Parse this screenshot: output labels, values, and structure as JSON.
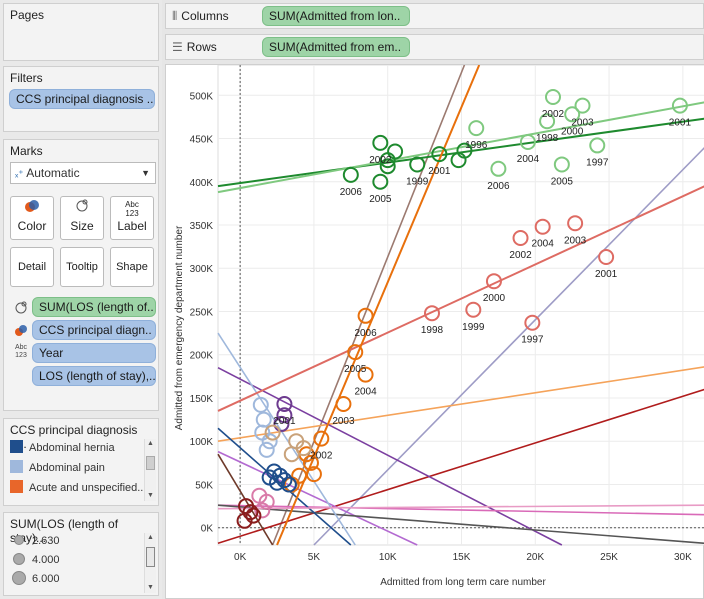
{
  "pages": {
    "title": "Pages"
  },
  "filters": {
    "title": "Filters",
    "pill": "CCS principal diagnosis .."
  },
  "marks": {
    "title": "Marks",
    "mark_type": "Automatic",
    "buttons": {
      "color": "Color",
      "size": "Size",
      "label": "Label",
      "detail": "Detail",
      "tooltip": "Tooltip",
      "shape": "Shape"
    },
    "label_icon_text": "Abc\n123",
    "fields": [
      {
        "label": "SUM(LOS (length of..",
        "kind": "size"
      },
      {
        "label": "CCS principal diagn..",
        "kind": "color"
      },
      {
        "label": "Year",
        "kind": "label"
      },
      {
        "label": "LOS (length of stay),..",
        "kind": "detail"
      }
    ]
  },
  "color_legend": {
    "title": "CCS principal diagnosis n...",
    "items": [
      {
        "label": "Abdominal hernia",
        "color": "#1f4e8c"
      },
      {
        "label": "Abdominal pain",
        "color": "#9fb8dc"
      },
      {
        "label": "Acute and unspecified...",
        "color": "#e8662a"
      }
    ]
  },
  "size_legend": {
    "title": "SUM(LOS (length of stay)...",
    "items": [
      "2.630",
      "4.000",
      "6.000"
    ]
  },
  "shelves": {
    "columns_label": "Columns",
    "columns_pill": "SUM(Admitted from lon..",
    "rows_label": "Rows",
    "rows_pill": "SUM(Admitted from em.."
  },
  "chart_data": {
    "type": "scatter",
    "xlabel": "Admitted from long term care number",
    "ylabel": "Admitted from emergency department number",
    "xticks": [
      "0K",
      "5K",
      "10K",
      "15K",
      "20K",
      "25K",
      "30K"
    ],
    "yticks": [
      "0K",
      "50K",
      "100K",
      "150K",
      "200K",
      "250K",
      "300K",
      "350K",
      "400K",
      "450K",
      "500K"
    ],
    "xlim": [
      -1500,
      31500
    ],
    "ylim": [
      -20000,
      535000
    ],
    "series": [
      {
        "name": "dark-green",
        "color": "#1e8a2e",
        "points": [
          {
            "x": 7500,
            "y": 408000,
            "year": "2006"
          },
          {
            "x": 9500,
            "y": 445000,
            "year": "2002"
          },
          {
            "x": 9500,
            "y": 400000,
            "year": "2005"
          },
          {
            "x": 10000,
            "y": 425000
          },
          {
            "x": 10500,
            "y": 435000
          },
          {
            "x": 10000,
            "y": 418000
          },
          {
            "x": 12000,
            "y": 420000,
            "year": "1999"
          },
          {
            "x": 13500,
            "y": 432000,
            "year": "2001"
          },
          {
            "x": 14800,
            "y": 425000
          },
          {
            "x": 15200,
            "y": 436000
          }
        ],
        "trend": [
          [
            -1500,
            395000
          ],
          [
            31500,
            473000
          ]
        ]
      },
      {
        "name": "light-green",
        "color": "#7fc97f",
        "points": [
          {
            "x": 21200,
            "y": 498000,
            "year": "2002"
          },
          {
            "x": 23200,
            "y": 488000,
            "year": "2003"
          },
          {
            "x": 20800,
            "y": 470000,
            "year": "1998"
          },
          {
            "x": 22500,
            "y": 478000,
            "year": "2000"
          },
          {
            "x": 29800,
            "y": 488000,
            "year": "2001"
          },
          {
            "x": 19500,
            "y": 446000,
            "year": "2004"
          },
          {
            "x": 24200,
            "y": 442000,
            "year": "1997"
          },
          {
            "x": 21800,
            "y": 420000,
            "year": "2005"
          },
          {
            "x": 17500,
            "y": 415000,
            "year": "2006"
          },
          {
            "x": 16000,
            "y": 462000,
            "year": "1996"
          }
        ],
        "trend": [
          [
            -1500,
            388000
          ],
          [
            31500,
            492000
          ]
        ]
      },
      {
        "name": "salmon",
        "color": "#de6b63",
        "points": [
          {
            "x": 13000,
            "y": 248000,
            "year": "1998"
          },
          {
            "x": 15800,
            "y": 252000,
            "year": "1999"
          },
          {
            "x": 17200,
            "y": 285000,
            "year": "2000"
          },
          {
            "x": 19000,
            "y": 335000,
            "year": "2002"
          },
          {
            "x": 20500,
            "y": 348000,
            "year": "2004"
          },
          {
            "x": 22700,
            "y": 352000,
            "year": "2003"
          },
          {
            "x": 24800,
            "y": 313000,
            "year": "2001"
          },
          {
            "x": 19800,
            "y": 237000,
            "year": "1997"
          }
        ],
        "trend": [
          [
            -1500,
            135000
          ],
          [
            31500,
            395000
          ]
        ]
      },
      {
        "name": "orange",
        "color": "#e8700c",
        "points": [
          {
            "x": 8500,
            "y": 245000,
            "year": "2006"
          },
          {
            "x": 7800,
            "y": 203000,
            "year": "2005"
          },
          {
            "x": 8500,
            "y": 177000,
            "year": "2004"
          },
          {
            "x": 7000,
            "y": 143000,
            "year": "2003"
          },
          {
            "x": 5500,
            "y": 103000,
            "year": "2002"
          },
          {
            "x": 4500,
            "y": 85000
          },
          {
            "x": 4800,
            "y": 75000
          },
          {
            "x": 4000,
            "y": 60000
          },
          {
            "x": 3500,
            "y": 50000
          },
          {
            "x": 5000,
            "y": 62000
          }
        ],
        "trend": [
          [
            2500,
            -20000
          ],
          [
            16200,
            535000
          ]
        ]
      },
      {
        "name": "purple",
        "color": "#6d3b8f",
        "points": [
          {
            "x": 3000,
            "y": 143000,
            "year": "2001"
          },
          {
            "x": 3000,
            "y": 130000
          },
          {
            "x": 2800,
            "y": 120000
          }
        ]
      },
      {
        "name": "blue",
        "color": "#1f4e8c",
        "points": [
          {
            "x": 2300,
            "y": 65000
          },
          {
            "x": 2700,
            "y": 60000
          },
          {
            "x": 3000,
            "y": 55000
          },
          {
            "x": 3300,
            "y": 50000
          },
          {
            "x": 2500,
            "y": 52000
          },
          {
            "x": 2000,
            "y": 58000
          }
        ]
      },
      {
        "name": "light-blue",
        "color": "#9fb8dc",
        "points": [
          {
            "x": 1400,
            "y": 142000
          },
          {
            "x": 1600,
            "y": 125000
          },
          {
            "x": 1500,
            "y": 110000
          },
          {
            "x": 2000,
            "y": 100000
          },
          {
            "x": 1800,
            "y": 90000
          }
        ]
      },
      {
        "name": "tan",
        "color": "#c9a27a",
        "points": [
          {
            "x": 3800,
            "y": 100000
          },
          {
            "x": 4300,
            "y": 92000
          },
          {
            "x": 3500,
            "y": 85000
          },
          {
            "x": 2200,
            "y": 110000
          }
        ]
      },
      {
        "name": "pink",
        "color": "#d97aa8",
        "points": [
          {
            "x": 1300,
            "y": 37000
          },
          {
            "x": 1800,
            "y": 30000
          },
          {
            "x": 1500,
            "y": 20000
          }
        ]
      },
      {
        "name": "dark-red",
        "color": "#8a1c1c",
        "points": [
          {
            "x": 400,
            "y": 25000
          },
          {
            "x": 700,
            "y": 18000
          },
          {
            "x": 300,
            "y": 8000
          },
          {
            "x": 900,
            "y": 14000
          }
        ]
      }
    ],
    "extra_trends": [
      {
        "color": "#9c7a70",
        "line": [
          [
            2200,
            -20000
          ],
          [
            15200,
            535000
          ]
        ]
      },
      {
        "color": "#9e9cc6",
        "line": [
          [
            5000,
            -20000
          ],
          [
            31500,
            440000
          ]
        ]
      },
      {
        "color": "#f5a35a",
        "line": [
          [
            -1500,
            100000
          ],
          [
            31500,
            186000
          ]
        ]
      },
      {
        "color": "#b01c1c",
        "line": [
          [
            -1500,
            -18000
          ],
          [
            31500,
            160000
          ]
        ]
      },
      {
        "color": "#7b3fa0",
        "line": [
          [
            -1500,
            185000
          ],
          [
            21800,
            -20000
          ]
        ]
      },
      {
        "color": "#b36ad1",
        "line": [
          [
            -1500,
            88000
          ],
          [
            12000,
            -20000
          ]
        ]
      },
      {
        "color": "#d96ab8",
        "line": [
          [
            -1500,
            26000
          ],
          [
            31500,
            15000
          ]
        ]
      },
      {
        "color": "#555555",
        "line": [
          [
            -1500,
            26000
          ],
          [
            31500,
            -18000
          ]
        ]
      },
      {
        "color": "#1f4e8c",
        "line": [
          [
            -1500,
            115000
          ],
          [
            7500,
            -20000
          ]
        ]
      },
      {
        "color": "#9fb8dc",
        "line": [
          [
            -1500,
            225000
          ],
          [
            7800,
            -20000
          ]
        ]
      },
      {
        "color": "#6e3a2a",
        "line": [
          [
            -1500,
            85000
          ],
          [
            2200,
            -20000
          ]
        ]
      },
      {
        "color": "#e89bc5",
        "line": [
          [
            -1500,
            22000
          ],
          [
            31500,
            26000
          ]
        ]
      }
    ]
  }
}
